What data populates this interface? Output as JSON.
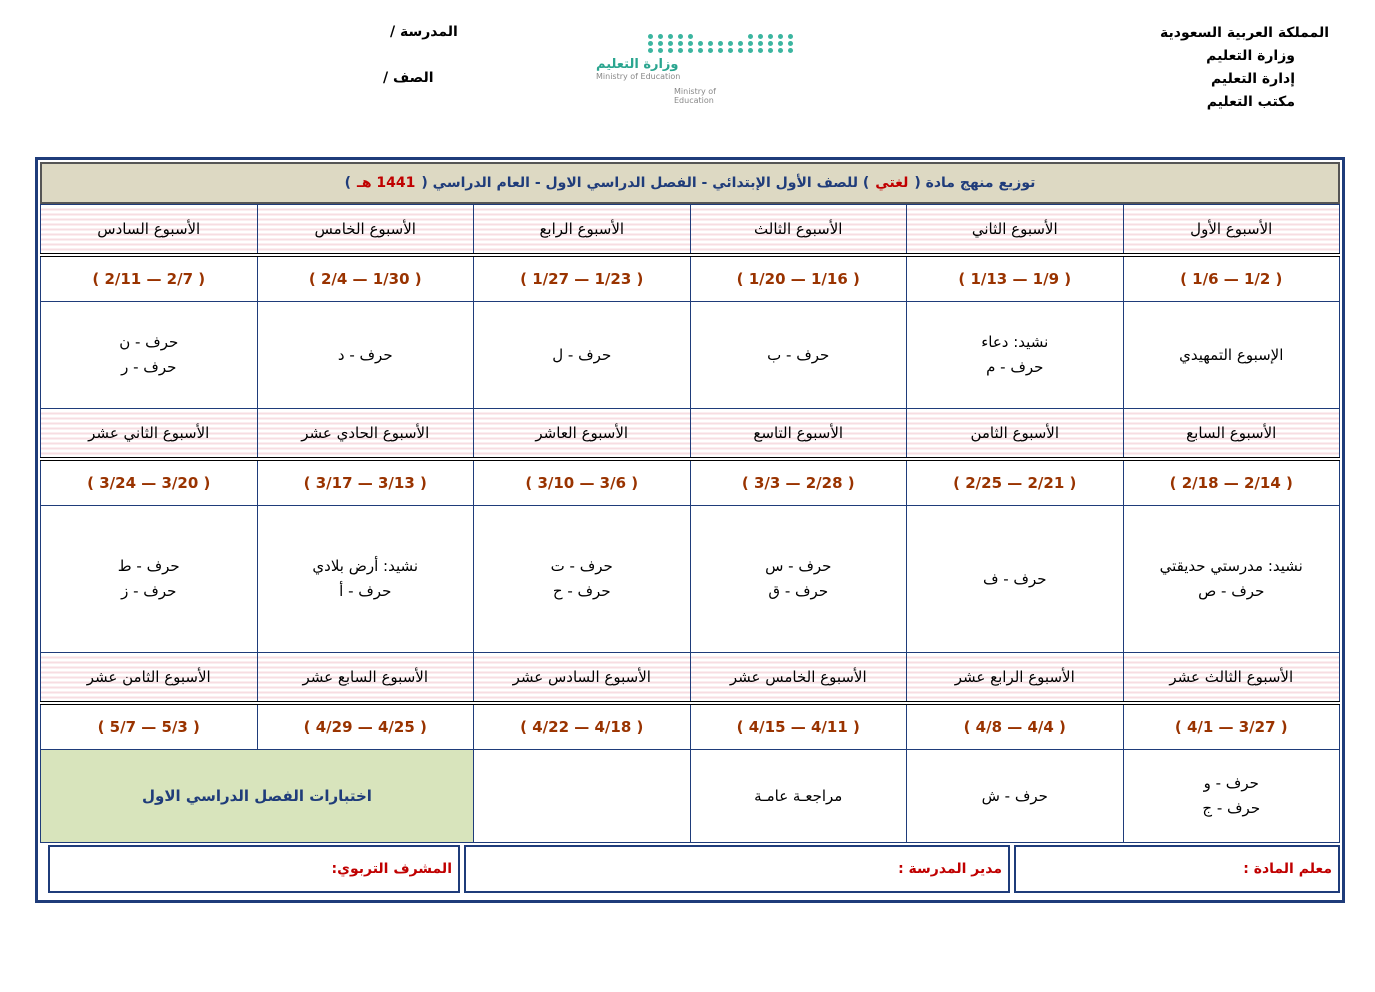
{
  "header": {
    "right": [
      "المملكة العربية السعودية",
      "وزارة التعليم",
      "إدارة التعليم",
      "مكتب التعليم"
    ],
    "school": "المدرسة /",
    "class": "الصف /",
    "logo": {
      "ar": "وزارة التعليم",
      "en": "Ministry of Education",
      "en2": "Ministry of Education"
    }
  },
  "title": {
    "prefix": "توزيع منهج مادة (",
    "subject": "لغتي",
    "mid": ") للصف الأول الإبتدائي  -  الفصل الدراسي الاول  -  العام الدراسي  (",
    "year": "1441 هـ",
    "suffix": ")"
  },
  "weeks": [
    [
      {
        "name": "الأسبوع الأول",
        "dates": "( 1/6 — 1/2 )",
        "content": [
          "الإسبوع التمهيدي"
        ]
      },
      {
        "name": "الأسبوع الثاني",
        "dates": "( 1/13 — 1/9 )",
        "content": [
          "نشيد: دعاء",
          "حرف - م"
        ]
      },
      {
        "name": "الأسبوع الثالث",
        "dates": "( 1/20 — 1/16 )",
        "content": [
          "حرف - ب"
        ]
      },
      {
        "name": "الأسبوع الرابع",
        "dates": "( 1/27 — 1/23 )",
        "content": [
          "حرف - ل"
        ]
      },
      {
        "name": "الأسبوع الخامس",
        "dates": "( 2/4 — 1/30 )",
        "content": [
          "حرف - د"
        ]
      },
      {
        "name": "الأسبوع السادس",
        "dates": "( 2/11 — 2/7 )",
        "content": [
          "حرف - ن",
          "حرف - ر"
        ]
      }
    ],
    [
      {
        "name": "الأسبوع السابع",
        "dates": "( 2/18 — 2/14 )",
        "content": [
          "نشيد: مدرستي حديقتي",
          "حرف - ص"
        ]
      },
      {
        "name": "الأسبوع الثامن",
        "dates": "( 2/25 — 2/21 )",
        "content": [
          "حرف - ف"
        ]
      },
      {
        "name": "الأسبوع التاسع",
        "dates": "( 3/3 — 2/28 )",
        "content": [
          "حرف - س",
          "حرف - ق"
        ]
      },
      {
        "name": "الأسبوع العاشر",
        "dates": "( 3/10 — 3/6 )",
        "content": [
          "حرف - ت",
          "حرف - ح"
        ]
      },
      {
        "name": "الأسبوع الحادي عشر",
        "dates": "( 3/17 — 3/13 )",
        "content": [
          "نشيد: أرض بلادي",
          "حرف - أ"
        ]
      },
      {
        "name": "الأسبوع الثاني عشر",
        "dates": "( 3/24 — 3/20 )",
        "content": [
          "حرف - ط",
          "حرف - ز"
        ]
      }
    ],
    [
      {
        "name": "الأسبوع الثالث عشر",
        "dates": "( 4/1 — 3/27 )",
        "content": [
          "حرف - و",
          "حرف - ج"
        ]
      },
      {
        "name": "الأسبوع الرابع عشر",
        "dates": "( 4/8 — 4/4 )",
        "content": [
          "حرف - ش"
        ]
      },
      {
        "name": "الأسبوع الخامس عشر",
        "dates": "( 4/15 — 4/11 )",
        "content": [
          "مراجعـة عامـة"
        ]
      },
      {
        "name": "الأسبوع السادس عشر",
        "dates": "( 4/22 — 4/18 )",
        "content": []
      },
      {
        "name": "الأسبوع السابع عشر",
        "dates": "( 4/29 — 4/25 )",
        "content": []
      },
      {
        "name": "الأسبوع الثامن عشر",
        "dates": "( 5/7 — 5/3 )",
        "content": []
      }
    ]
  ],
  "exams": "اختبارات الفصل الدراسي الاول",
  "footer": {
    "teacher": "معلم المادة :",
    "principal": "مدير المدرسة :",
    "supervisor": "المشرف التربوي:"
  }
}
